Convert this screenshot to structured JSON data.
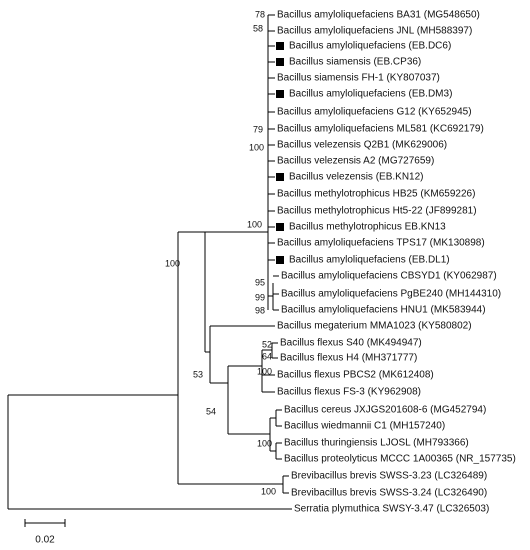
{
  "leaves": [
    {
      "label": "Bacillus amyloliquefaciens BA31 (MG548650)",
      "marked": false
    },
    {
      "label": "Bacillus amyloliquefaciens JNL (MH588397)",
      "marked": false
    },
    {
      "label": "Bacillus amyloliquefaciens (EB.DC6)",
      "marked": true
    },
    {
      "label": "Bacillus siamensis (EB.CP36)",
      "marked": true
    },
    {
      "label": "Bacillus siamensis FH-1 (KY807037)",
      "marked": false
    },
    {
      "label": "Bacillus amyloliquefaciens (EB.DM3)",
      "marked": true
    },
    {
      "label": "Bacillus amyloliquefaciens G12 (KY652945)",
      "marked": false
    },
    {
      "label": "Bacillus amyloliquefaciens ML581 (KC692179)",
      "marked": false
    },
    {
      "label": "Bacillus velezensis Q2B1 (MK629006)",
      "marked": false
    },
    {
      "label": "Bacillus velezensis A2 (MG727659)",
      "marked": false
    },
    {
      "label": "Bacillus velezensis (EB.KN12)",
      "marked": true
    },
    {
      "label": "Bacillus methylotrophicus HB25 (KM659226)",
      "marked": false
    },
    {
      "label": "Bacillus methylotrophicus Ht5-22 (JF899281)",
      "marked": false
    },
    {
      "label": "Bacillus methylotrophicus EB.KN13",
      "marked": true
    },
    {
      "label": "Bacillus amyloliquefaciens TPS17 (MK130898)",
      "marked": false
    },
    {
      "label": "Bacillus amyloliquefaciens (EB.DL1)",
      "marked": true
    },
    {
      "label": "Bacillus amyloliquefaciens CBSYD1 (KY062987)",
      "marked": false
    },
    {
      "label": "Bacillus amyloliquefaciens PgBE240 (MH144310)",
      "marked": false
    },
    {
      "label": "Bacillus amyloliquefaciens HNU1 (MK583944)",
      "marked": false
    },
    {
      "label": "Bacillus megaterium MMA1023 (KY580802)",
      "marked": false
    },
    {
      "label": "Bacillus flexus S40 (MK494947)",
      "marked": false
    },
    {
      "label": "Bacillus flexus H4 (MH371777)",
      "marked": false
    },
    {
      "label": "Bacillus flexus PBCS2 (MK612408)",
      "marked": false
    },
    {
      "label": "Bacillus flexus FS-3 (KY962908)",
      "marked": false
    },
    {
      "label": "Bacillus cereus JXJGS201608-6 (MG452794)",
      "marked": false
    },
    {
      "label": "Bacillus wiedmannii C1 (MH157240)",
      "marked": false
    },
    {
      "label": "Bacillus thuringiensis LJOSL (MH793366)",
      "marked": false
    },
    {
      "label": "Bacillus proteolyticus MCCC 1A00365 (NR_157735)",
      "marked": false
    },
    {
      "label": "Brevibacillus brevis SWSS-3.23 (LC326489)",
      "marked": false
    },
    {
      "label": "Brevibacillus brevis SWSS-3.24 (LC326490)",
      "marked": false
    },
    {
      "label": "Serratia plymuthica SWSY-3.47 (LC326503)",
      "marked": false
    }
  ],
  "bootstrap": [
    78,
    58,
    79,
    100,
    100,
    95,
    99,
    98,
    100,
    52,
    64,
    100,
    53,
    54,
    100,
    100
  ],
  "scale_bar": "0.02"
}
